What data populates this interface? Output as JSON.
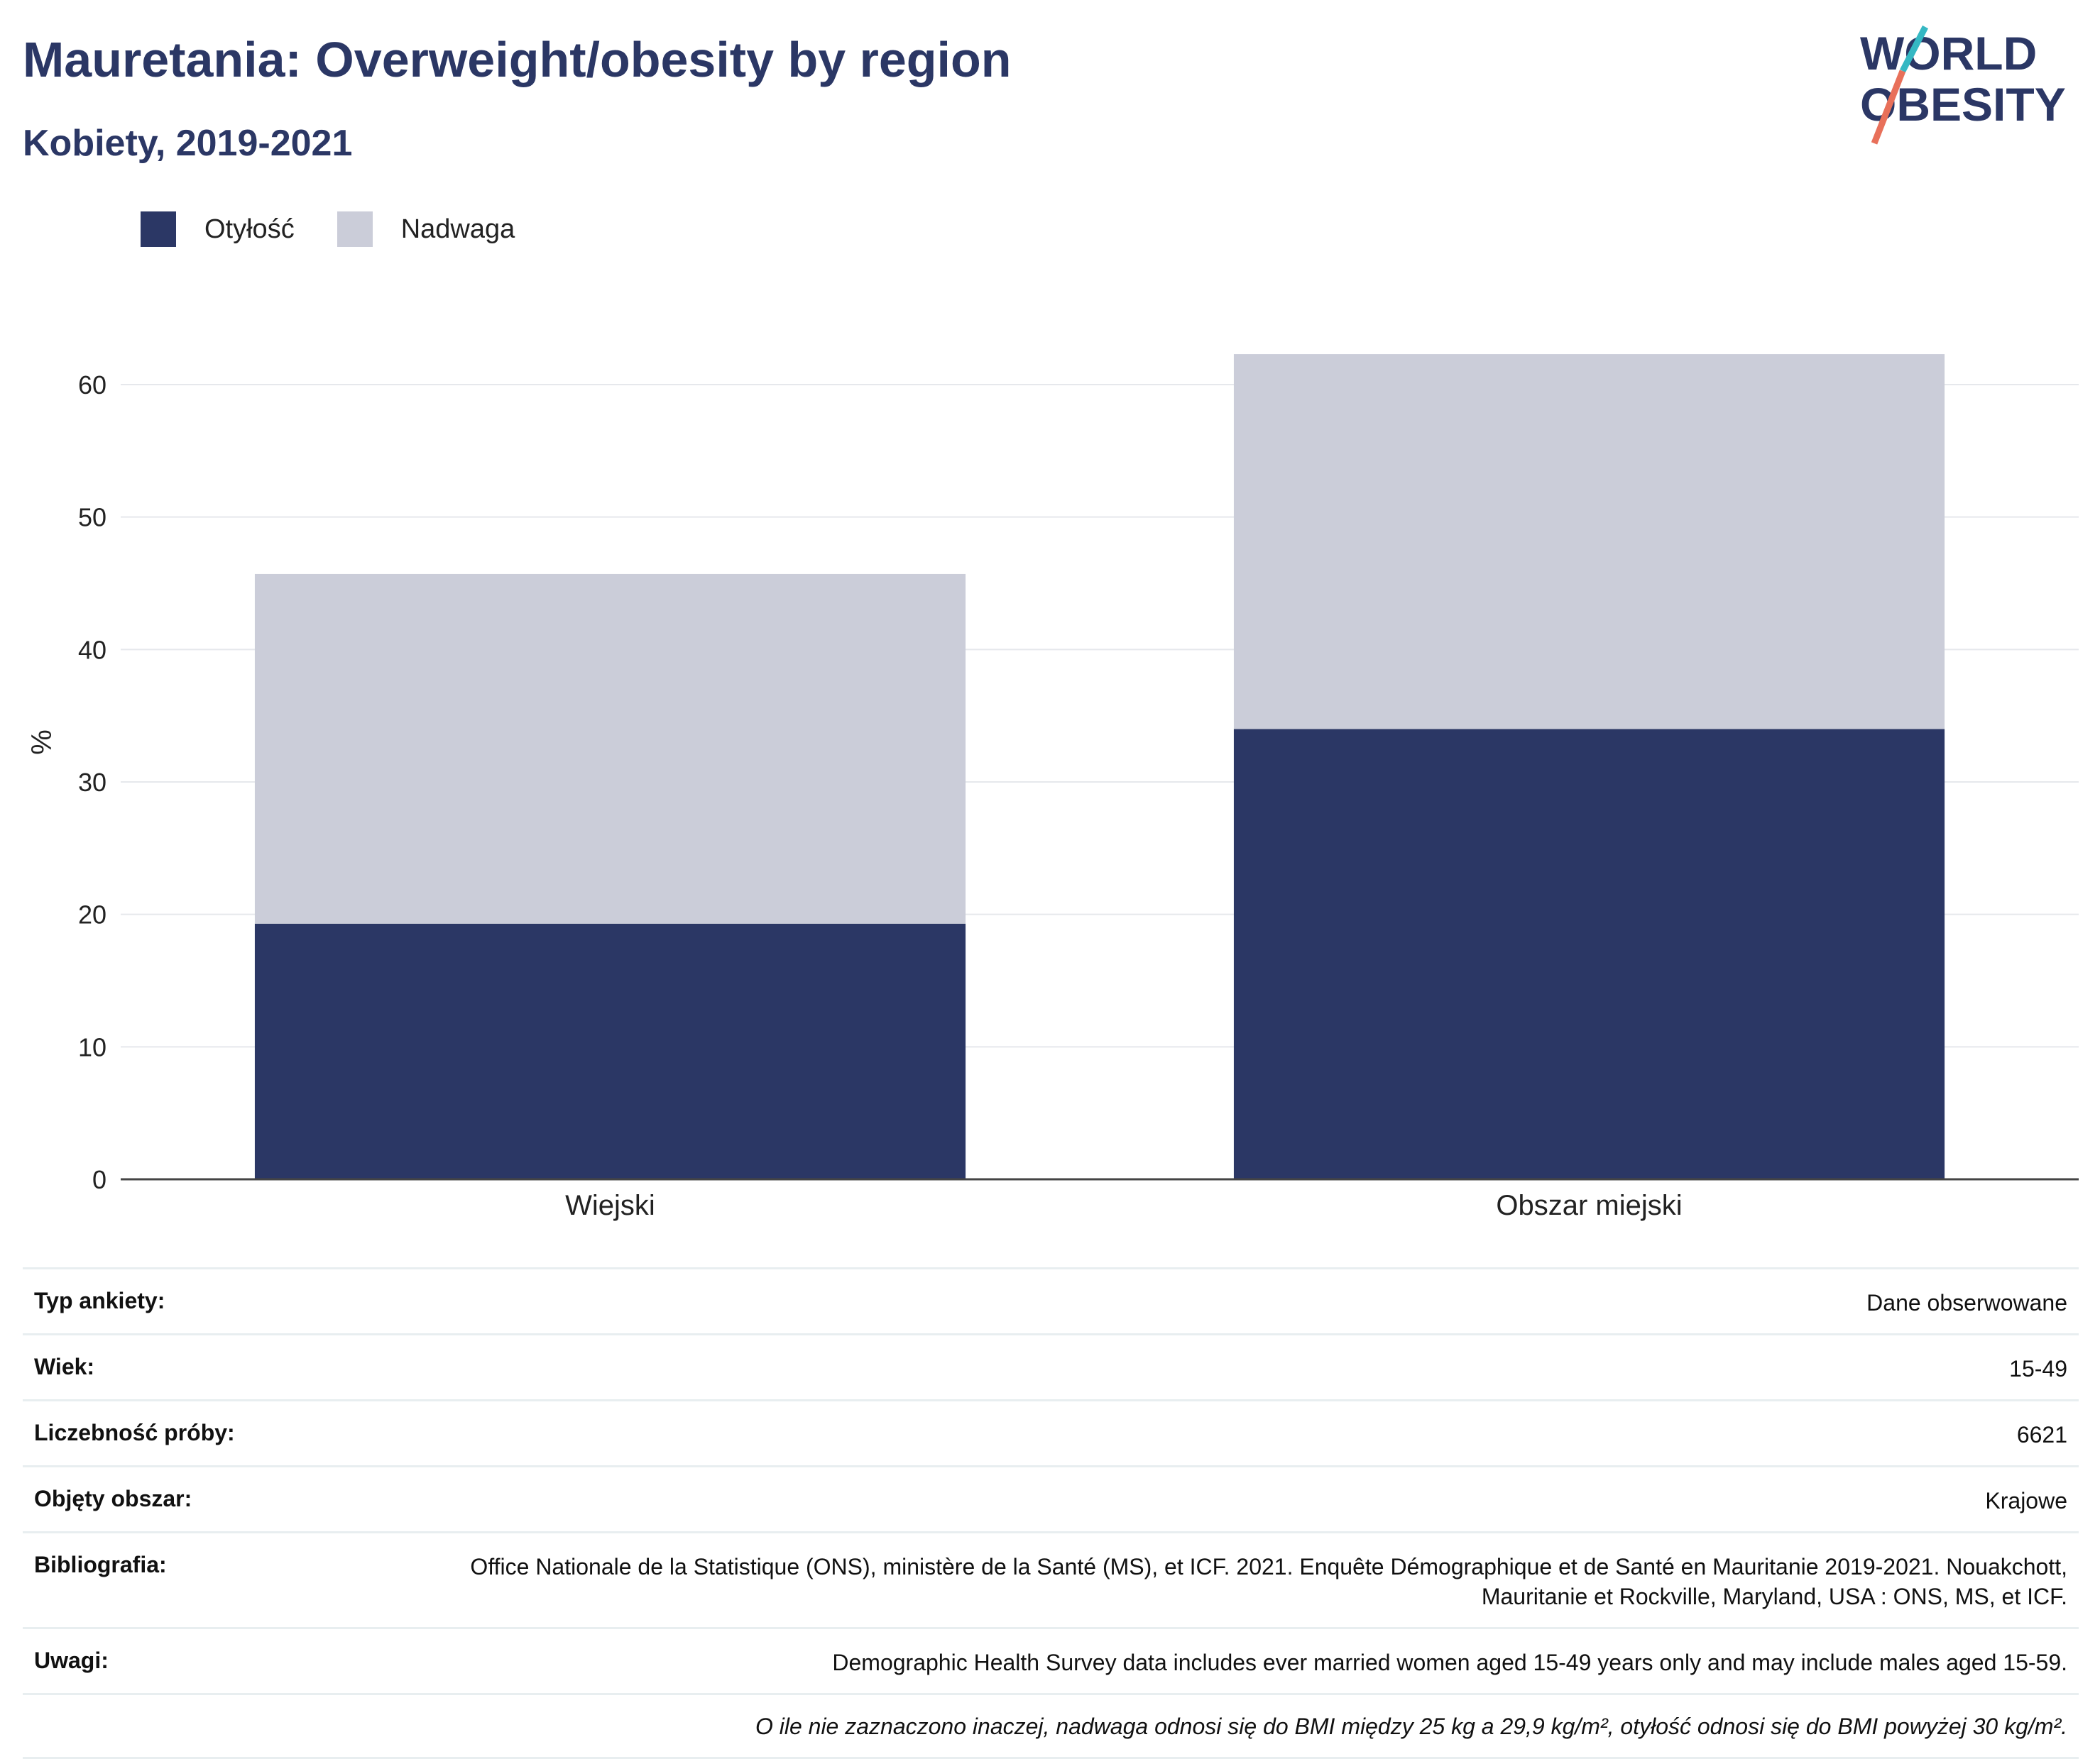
{
  "header": {
    "title": "Mauretania: Overweight/obesity by region",
    "subtitle": "Kobiety, 2019-2021"
  },
  "logo": {
    "line1": "WORLD",
    "line2": "OBESITY",
    "colors": {
      "text": "#2b3765",
      "slash_teal": "#35b8c3",
      "slash_coral": "#e8705a"
    }
  },
  "legend": [
    {
      "label": "Otyłość",
      "color": "#2b3765"
    },
    {
      "label": "Nadwaga",
      "color": "#cbcdd9"
    }
  ],
  "chart_data": {
    "type": "bar",
    "stacked": true,
    "categories": [
      "Wiejski",
      "Obszar miejski"
    ],
    "series": [
      {
        "name": "Otyłość",
        "color": "#2b3765",
        "values": [
          19.3,
          34.0
        ]
      },
      {
        "name": "Nadwaga",
        "color": "#cbcdd9",
        "values": [
          26.4,
          28.3
        ]
      }
    ],
    "ylabel": "%",
    "ylim": [
      0,
      66
    ],
    "yticks": [
      0,
      10,
      20,
      30,
      40,
      50,
      60
    ],
    "grid": true,
    "legend_position": "top-left"
  },
  "meta": {
    "rows": [
      {
        "key": "Typ ankiety:",
        "value": "Dane obserwowane"
      },
      {
        "key": "Wiek:",
        "value": "15-49"
      },
      {
        "key": "Liczebność próby:",
        "value": "6621"
      },
      {
        "key": "Objęty obszar:",
        "value": "Krajowe"
      },
      {
        "key": "Bibliografia:",
        "value": "Office Nationale de la Statistique (ONS), ministère de la Santé (MS), et ICF. 2021. Enquête Démographique et de Santé en Mauritanie 2019-2021. Nouakchott, Mauritanie et Rockville, Maryland, USA : ONS, MS, et ICF."
      },
      {
        "key": "Uwagi:",
        "value": "Demographic Health Survey data includes ever married women aged 15-49 years only and may include males aged 15-59."
      }
    ],
    "note": "O ile nie zaznaczono inaczej, nadwaga odnosi się do BMI między 25 kg a 29,9 kg/m², otyłość odnosi się do BMI powyżej 30 kg/m²."
  }
}
